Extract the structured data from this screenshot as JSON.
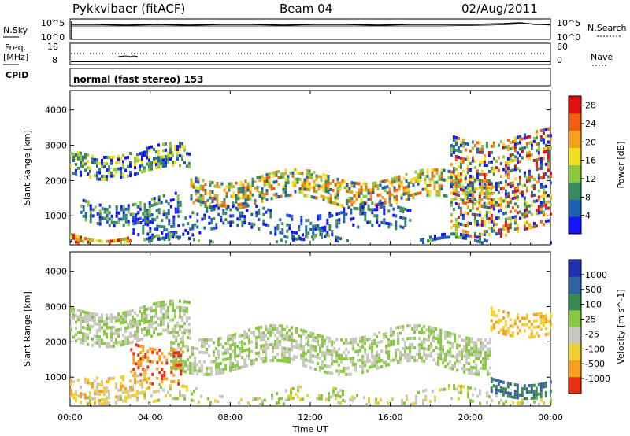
{
  "header": {
    "station": "Pykkvibaer (fitACF)",
    "beam": "Beam 04",
    "date": "02/Aug/2011"
  },
  "panels": {
    "nsky_label": "N.Sky",
    "nsky_ticks": [
      "10^5",
      "10^0"
    ],
    "nsearch_label": "N.Search",
    "nsearch_ticks": [
      "10^5",
      "10^0"
    ],
    "freq_label_1": "Freq.",
    "freq_label_2": "[MHz]",
    "freq_ticks": [
      "18",
      "8"
    ],
    "nave_label": "Nave",
    "nave_ticks": [
      "60",
      "0"
    ],
    "cpid_label": "CPID",
    "cpid_text": "normal (fast stereo) 153"
  },
  "chart_data": [
    {
      "type": "heatmap",
      "title": "",
      "ylabel": "Slant Range [km]",
      "xlabel": "Time UT",
      "x_ticks": [
        "00:00",
        "04:00",
        "08:00",
        "12:00",
        "16:00",
        "20:00",
        "00:00"
      ],
      "x_range_hours": [
        0,
        24
      ],
      "y_ticks": [
        1000,
        2000,
        3000,
        4000
      ],
      "ylim": [
        180,
        4550
      ],
      "colorbar_label": "Power [dB]",
      "colorbar_ticks": [
        "4",
        "8",
        "12",
        "16",
        "20",
        "24",
        "28"
      ],
      "colorbar_range": [
        0,
        30
      ],
      "colors": [
        "#1414ff",
        "#2060b0",
        "#3a8a60",
        "#8cc840",
        "#f0e020",
        "#f5a01a",
        "#f06010",
        "#e01010"
      ]
    },
    {
      "type": "heatmap",
      "title": "",
      "ylabel": "Slant Range [km]",
      "xlabel": "Time UT",
      "x_ticks": [
        "00:00",
        "04:00",
        "08:00",
        "12:00",
        "16:00",
        "20:00",
        "00:00"
      ],
      "x_range_hours": [
        0,
        24
      ],
      "y_ticks": [
        1000,
        2000,
        3000,
        4000
      ],
      "ylim": [
        180,
        4550
      ],
      "colorbar_label": "Velocity [m s^-1]",
      "colorbar_ticks": [
        "1000",
        "500",
        "100",
        "25",
        "-25",
        "-100",
        "-500",
        "-1000"
      ],
      "colors": [
        "#2030b0",
        "#3060a0",
        "#3a8a50",
        "#88c840",
        "#c8c8c0",
        "#f0d030",
        "#f5a01a",
        "#e83010"
      ]
    }
  ]
}
